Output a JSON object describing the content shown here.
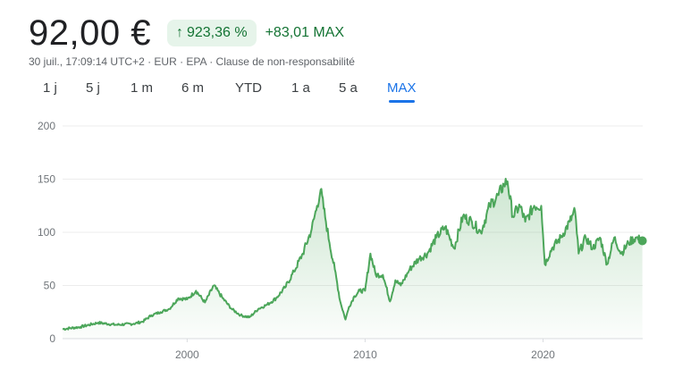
{
  "header": {
    "price": "92,00 €",
    "change_pct": "923,36 %",
    "change_arrow_icon": "arrow-up-icon",
    "change_abs": "+83,01 MAX",
    "meta": "30 juil., 17:09:14 UTC+2 · EUR · EPA · Clause de non-responsabilité"
  },
  "ranges": [
    "1 j",
    "5 j",
    "1 m",
    "6 m",
    "YTD",
    "1 a",
    "5 a",
    "MAX"
  ],
  "active_range": "MAX",
  "colors": {
    "line": "#4ca65a",
    "up": "#137333",
    "up_bg": "#e6f4ea",
    "accent": "#1a73e8"
  },
  "chart_data": {
    "type": "area",
    "ylim": [
      0,
      200
    ],
    "yticks": [
      "0",
      "50",
      "100",
      "150",
      "200"
    ],
    "xticks": [
      "2000",
      "2010",
      "2020"
    ],
    "grid": true,
    "x": [
      1993.0,
      1994.0,
      1995.0,
      1996.0,
      1997.0,
      1997.5,
      1998.0,
      1998.5,
      1999.0,
      1999.5,
      2000.0,
      2000.5,
      2001.0,
      2001.5,
      2002.0,
      2002.5,
      2003.0,
      2003.5,
      2004.0,
      2004.5,
      2005.0,
      2005.5,
      2006.0,
      2006.5,
      2007.0,
      2007.3,
      2007.5,
      2007.8,
      2008.0,
      2008.3,
      2008.6,
      2008.9,
      2009.1,
      2009.4,
      2009.7,
      2010.0,
      2010.3,
      2010.6,
      2011.0,
      2011.4,
      2011.7,
      2012.0,
      2012.5,
      2013.0,
      2013.5,
      2014.0,
      2014.5,
      2015.0,
      2015.5,
      2016.0,
      2016.5,
      2017.0,
      2017.5,
      2017.8,
      2018.0,
      2018.3,
      2018.7,
      2019.0,
      2019.5,
      2019.9,
      2020.1,
      2020.5,
      2021.0,
      2021.5,
      2021.8,
      2022.0,
      2022.4,
      2022.8,
      2023.2,
      2023.6,
      2024.0,
      2024.4,
      2024.8,
      2025.2,
      2025.58
    ],
    "values": [
      9,
      11,
      15,
      13,
      14,
      16,
      22,
      25,
      28,
      38,
      37,
      45,
      34,
      50,
      38,
      28,
      22,
      20,
      28,
      32,
      38,
      48,
      63,
      80,
      103,
      125,
      140,
      110,
      90,
      65,
      35,
      18,
      30,
      40,
      45,
      45,
      80,
      60,
      60,
      35,
      55,
      50,
      65,
      75,
      80,
      95,
      105,
      85,
      115,
      110,
      100,
      125,
      135,
      145,
      148,
      115,
      125,
      110,
      125,
      125,
      70,
      85,
      95,
      110,
      120,
      80,
      95,
      85,
      95,
      70,
      95,
      80,
      90,
      95,
      92
    ]
  }
}
